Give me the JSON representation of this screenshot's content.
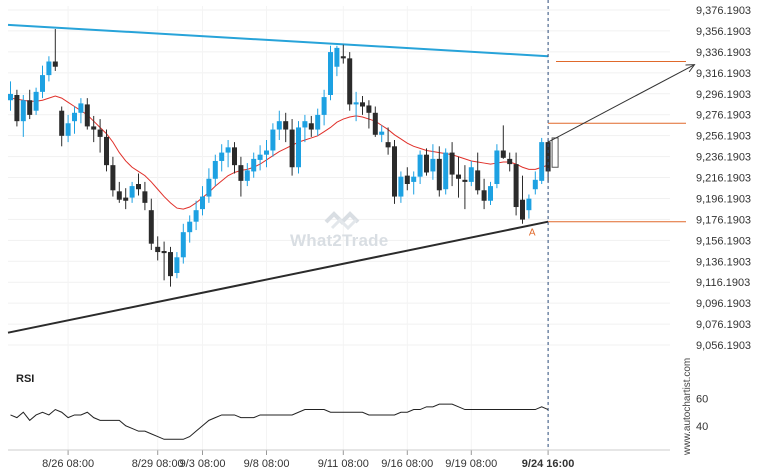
{
  "chart_data": {
    "type": "candlestick",
    "y_ticks": [
      "9,376.1903",
      "9,356.1903",
      "9,336.1903",
      "9,316.1903",
      "9,296.1903",
      "9,276.1903",
      "9,256.1903",
      "9,236.1903",
      "9,216.1903",
      "9,196.1903",
      "9,176.1903",
      "9,156.1903",
      "9,136.1903",
      "9,116.1903",
      "9,096.1903",
      "9,076.1903",
      "9,056.1903"
    ],
    "x_ticks": [
      "8/26 08:00",
      "8/29 08:00",
      "9/3 08:00",
      "9/8 08:00",
      "9/11 08:00",
      "9/16 08:00",
      "9/19 08:00",
      "9/24 16:00"
    ],
    "ylim": [
      9040,
      9380
    ],
    "candles": [
      [
        9290,
        9308,
        9280,
        9296
      ],
      [
        9295,
        9300,
        9265,
        9270
      ],
      [
        9270,
        9295,
        9255,
        9290
      ],
      [
        9290,
        9300,
        9272,
        9276
      ],
      [
        9280,
        9302,
        9276,
        9298
      ],
      [
        9298,
        9323,
        9292,
        9314
      ],
      [
        9314,
        9332,
        9308,
        9327
      ],
      [
        9327,
        9358,
        9318,
        9322
      ],
      [
        9280,
        9284,
        9246,
        9256
      ],
      [
        9256,
        9276,
        9250,
        9268
      ],
      [
        9270,
        9284,
        9258,
        9278
      ],
      [
        9278,
        9292,
        9268,
        9287
      ],
      [
        9286,
        9292,
        9262,
        9265
      ],
      [
        9265,
        9275,
        9250,
        9262
      ],
      [
        9262,
        9272,
        9240,
        9255
      ],
      [
        9255,
        9262,
        9222,
        9228
      ],
      [
        9228,
        9236,
        9198,
        9204
      ],
      [
        9203,
        9212,
        9192,
        9195
      ],
      [
        9197,
        9206,
        9186,
        9194
      ],
      [
        9197,
        9212,
        9192,
        9208
      ],
      [
        9210,
        9220,
        9199,
        9205
      ],
      [
        9203,
        9212,
        9185,
        9192
      ],
      [
        9185,
        9196,
        9147,
        9153
      ],
      [
        9150,
        9160,
        9137,
        9145
      ],
      [
        9146,
        9155,
        9118,
        9144
      ],
      [
        9145,
        9150,
        9112,
        9122
      ],
      [
        9125,
        9145,
        9120,
        9140
      ],
      [
        9140,
        9172,
        9134,
        9164
      ],
      [
        9164,
        9180,
        9154,
        9174
      ],
      [
        9174,
        9194,
        9166,
        9185
      ],
      [
        9186,
        9208,
        9180,
        9198
      ],
      [
        9198,
        9225,
        9192,
        9215
      ],
      [
        9215,
        9238,
        9208,
        9232
      ],
      [
        9232,
        9248,
        9222,
        9240
      ],
      [
        9240,
        9252,
        9226,
        9245
      ],
      [
        9245,
        9250,
        9220,
        9228
      ],
      [
        9228,
        9236,
        9198,
        9213
      ],
      [
        9213,
        9230,
        9208,
        9223
      ],
      [
        9222,
        9240,
        9216,
        9234
      ],
      [
        9233,
        9247,
        9223,
        9238
      ],
      [
        9238,
        9252,
        9226,
        9242
      ],
      [
        9242,
        9268,
        9236,
        9262
      ],
      [
        9262,
        9280,
        9252,
        9270
      ],
      [
        9270,
        9278,
        9250,
        9262
      ],
      [
        9262,
        9272,
        9218,
        9226
      ],
      [
        9226,
        9270,
        9220,
        9264
      ],
      [
        9264,
        9276,
        9250,
        9270
      ],
      [
        9268,
        9275,
        9255,
        9262
      ],
      [
        9262,
        9282,
        9256,
        9276
      ],
      [
        9276,
        9300,
        9266,
        9293
      ],
      [
        9295,
        9342,
        9290,
        9336
      ],
      [
        9322,
        9342,
        9313,
        9340
      ],
      [
        9332,
        9343,
        9325,
        9330
      ],
      [
        9330,
        9336,
        9280,
        9286
      ],
      [
        9286,
        9298,
        9270,
        9288
      ],
      [
        9288,
        9294,
        9276,
        9284
      ],
      [
        9285,
        9290,
        9263,
        9278
      ],
      [
        9278,
        9284,
        9255,
        9257
      ],
      [
        9257,
        9266,
        9250,
        9260
      ],
      [
        9250,
        9264,
        9238,
        9245
      ],
      [
        9246,
        9252,
        9191,
        9198
      ],
      [
        9198,
        9222,
        9192,
        9217
      ],
      [
        9218,
        9226,
        9204,
        9210
      ],
      [
        9212,
        9222,
        9200,
        9217
      ],
      [
        9217,
        9242,
        9210,
        9238
      ],
      [
        9238,
        9244,
        9218,
        9221
      ],
      [
        9222,
        9248,
        9214,
        9234
      ],
      [
        9234,
        9246,
        9198,
        9204
      ],
      [
        9205,
        9244,
        9200,
        9240
      ],
      [
        9240,
        9250,
        9208,
        9219
      ],
      [
        9219,
        9236,
        9197,
        9215
      ],
      [
        9214,
        9228,
        9186,
        9212
      ],
      [
        9212,
        9232,
        9208,
        9226
      ],
      [
        9223,
        9240,
        9200,
        9204
      ],
      [
        9204,
        9215,
        9186,
        9194
      ],
      [
        9194,
        9212,
        9190,
        9208
      ],
      [
        9210,
        9248,
        9206,
        9242
      ],
      [
        9242,
        9266,
        9234,
        9235
      ],
      [
        9234,
        9240,
        9222,
        9229
      ],
      [
        9229,
        9240,
        9180,
        9188
      ],
      [
        9195,
        9218,
        9172,
        9176
      ],
      [
        9185,
        9200,
        9177,
        9196
      ],
      [
        9205,
        9222,
        9200,
        9214
      ],
      [
        9213,
        9254,
        9210,
        9250
      ],
      [
        9250,
        9252,
        9212,
        9222
      ]
    ],
    "moving_average": [
      9292,
      9291,
      9290,
      9289,
      9289,
      9290,
      9292,
      9294,
      9292,
      9288,
      9284,
      9280,
      9276,
      9270,
      9264,
      9258,
      9250,
      9240,
      9232,
      9226,
      9222,
      9218,
      9212,
      9205,
      9198,
      9192,
      9187,
      9186,
      9188,
      9192,
      9197,
      9202,
      9208,
      9213,
      9218,
      9221,
      9223,
      9224,
      9226,
      9229,
      9233,
      9237,
      9241,
      9244,
      9247,
      9250,
      9252,
      9254,
      9256,
      9260,
      9264,
      9269,
      9272,
      9274,
      9275,
      9274,
      9272,
      9270,
      9266,
      9262,
      9257,
      9253,
      9249,
      9246,
      9244,
      9242,
      9241,
      9240,
      9239,
      9238,
      9236,
      9234,
      9232,
      9231,
      9230,
      9229,
      9230,
      9231,
      9231,
      9229,
      9226,
      9224,
      9224,
      9226,
      9228
    ],
    "rsi": {
      "label": "RSI",
      "y_ticks": [
        "60",
        "40"
      ],
      "values": [
        48,
        46,
        50,
        44,
        48,
        50,
        48,
        52,
        50,
        46,
        48,
        48,
        50,
        46,
        44,
        44,
        44,
        44,
        40,
        38,
        36,
        36,
        34,
        32,
        30,
        30,
        30,
        30,
        32,
        36,
        40,
        44,
        46,
        48,
        48,
        48,
        46,
        46,
        46,
        48,
        48,
        48,
        48,
        48,
        48,
        50,
        52,
        52,
        52,
        52,
        50,
        50,
        50,
        50,
        50,
        50,
        48,
        48,
        48,
        48,
        48,
        50,
        50,
        52,
        52,
        54,
        54,
        56,
        56,
        56,
        54,
        52,
        52,
        52,
        52,
        52,
        52,
        52,
        52,
        52,
        52,
        52,
        52,
        54,
        52
      ]
    },
    "annotations": {
      "resistance_line": {
        "from": [
          0,
          9362
        ],
        "to": [
          84,
          9332
        ]
      },
      "support_line": {
        "from": [
          0,
          9068
        ],
        "to": [
          84,
          9174
        ]
      },
      "upper_level": 9268,
      "lower_level": 9174,
      "target_level": 9327,
      "arrow_from": [
        84,
        9250
      ],
      "arrow_to": [
        110,
        9324
      ],
      "current_time_index": 84,
      "projection_box": [
        9254,
        9226
      ],
      "point_label": "A"
    },
    "colors": {
      "up": "#1da1e2",
      "down": "#2b2b2b",
      "moving_average": "#e0302a",
      "resistance": "#27a3d9",
      "support": "#2b2b2b",
      "levels": "#e0692b",
      "arrow": "#333333"
    }
  },
  "watermark": "What2Trade",
  "credit": "www.autochartist.com"
}
